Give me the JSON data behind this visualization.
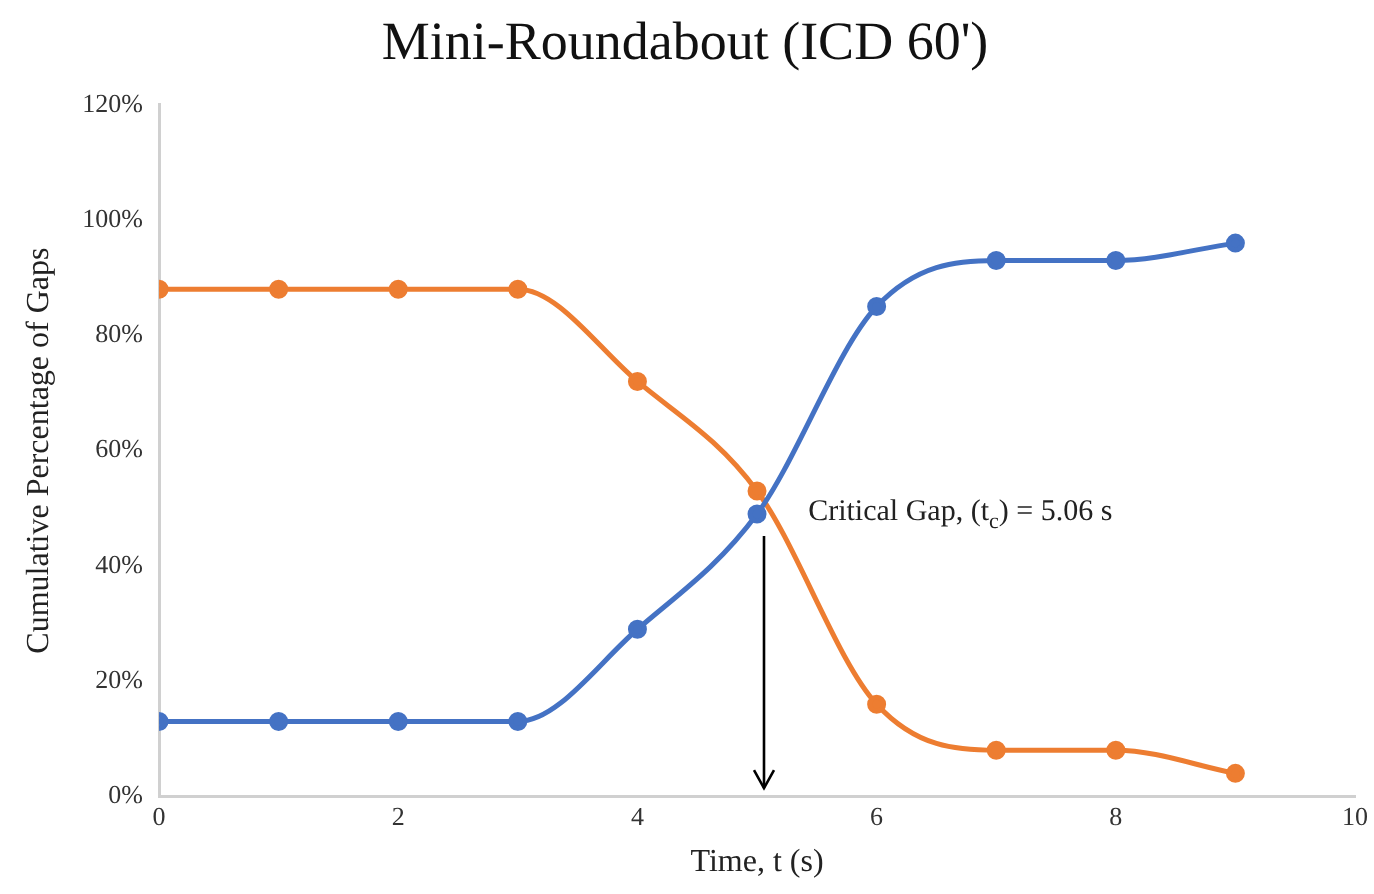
{
  "chart_data": {
    "type": "line",
    "title": "Mini-Roundabout (ICD 60')",
    "xlabel": "Time, t (s)",
    "ylabel": "Cumulative Percentage of Gaps",
    "x": [
      0,
      1,
      2,
      3,
      4,
      5,
      6,
      7,
      8,
      9
    ],
    "series": [
      {
        "color": "#4472c4",
        "values": [
          13,
          13,
          13,
          13,
          29,
          49,
          85,
          93,
          93,
          96
        ]
      },
      {
        "color": "#ed7d31",
        "values": [
          88,
          88,
          88,
          88,
          72,
          53,
          16,
          8,
          8,
          4
        ]
      }
    ],
    "xlim": [
      0,
      10
    ],
    "xticks": [
      0,
      2,
      4,
      6,
      8,
      10
    ],
    "ylim": [
      0,
      120
    ],
    "yticks": [
      {
        "value": 0,
        "label": "0%"
      },
      {
        "value": 20,
        "label": "20%"
      },
      {
        "value": 40,
        "label": "40%"
      },
      {
        "value": 60,
        "label": "60%"
      },
      {
        "value": 80,
        "label": "80%"
      },
      {
        "value": 100,
        "label": "100%"
      },
      {
        "value": 120,
        "label": "120%"
      }
    ],
    "annotations": [
      {
        "text": "Critical Gap, (t$_{c}$) = 5.06 s",
        "x": 5.06,
        "y": 50
      }
    ],
    "grid": false,
    "legend": false,
    "marker": "circle",
    "line_style": "solid"
  }
}
